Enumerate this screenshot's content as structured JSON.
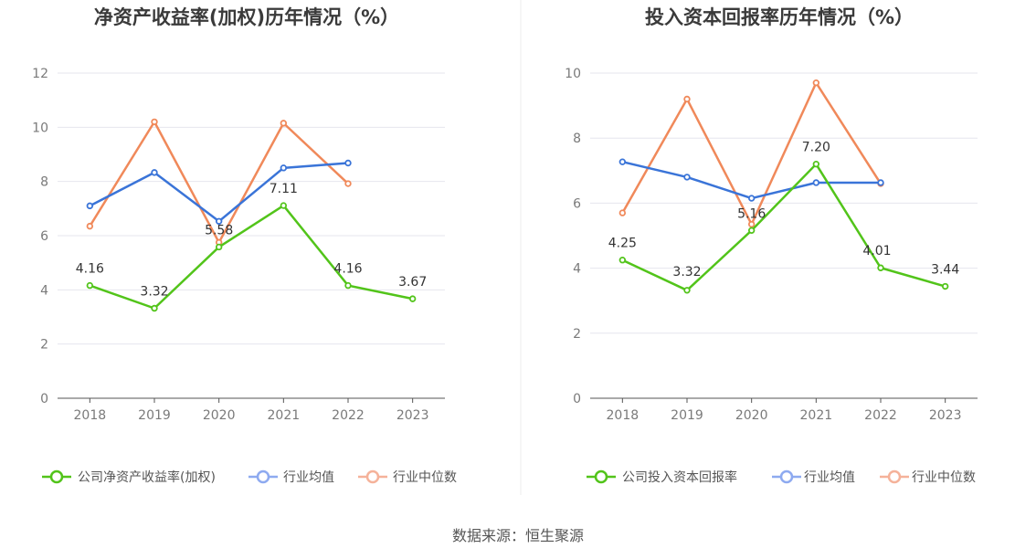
{
  "source_label": "数据来源：恒生聚源",
  "colors": {
    "company": "#52c41a",
    "avg": "#3a74d8",
    "median": "#f0895a",
    "avg_legend": "#8eaaf0",
    "median_legend": "#f5b29a"
  },
  "chart_data": [
    {
      "type": "line",
      "title": "净资产收益率(加权)历年情况（%）",
      "categories": [
        "2018",
        "2019",
        "2020",
        "2021",
        "2022",
        "2023"
      ],
      "ylim": [
        0,
        12
      ],
      "yticks": [
        0,
        2,
        4,
        6,
        8,
        10,
        12
      ],
      "grid": true,
      "legend_position": "bottom",
      "series": [
        {
          "name": "公司净资产收益率(加权)",
          "key": "company",
          "values": [
            4.16,
            3.32,
            5.58,
            7.11,
            4.16,
            3.67
          ],
          "labels": [
            "4.16",
            "3.32",
            "5.58",
            "7.11",
            "4.16",
            "3.67"
          ]
        },
        {
          "name": "行业均值",
          "key": "avg",
          "values": [
            7.1,
            8.33,
            6.53,
            8.5,
            8.68,
            null
          ]
        },
        {
          "name": "行业中位数",
          "key": "median",
          "values": [
            6.35,
            10.2,
            5.75,
            10.15,
            7.92,
            null
          ]
        }
      ]
    },
    {
      "type": "line",
      "title": "投入资本回报率历年情况（%）",
      "categories": [
        "2018",
        "2019",
        "2020",
        "2021",
        "2022",
        "2023"
      ],
      "ylim": [
        0,
        10
      ],
      "yticks": [
        0,
        2,
        4,
        6,
        8,
        10
      ],
      "grid": true,
      "legend_position": "bottom",
      "series": [
        {
          "name": "公司投入资本回报率",
          "key": "company",
          "values": [
            4.25,
            3.32,
            5.16,
            7.2,
            4.01,
            3.44
          ],
          "labels": [
            "4.25",
            "3.32",
            "5.16",
            "7.20",
            "4.01",
            "3.44"
          ]
        },
        {
          "name": "行业均值",
          "key": "avg",
          "values": [
            7.27,
            6.8,
            6.15,
            6.63,
            6.63,
            null
          ]
        },
        {
          "name": "行业中位数",
          "key": "median",
          "values": [
            5.7,
            9.2,
            5.35,
            9.7,
            6.6,
            null
          ]
        }
      ]
    }
  ]
}
